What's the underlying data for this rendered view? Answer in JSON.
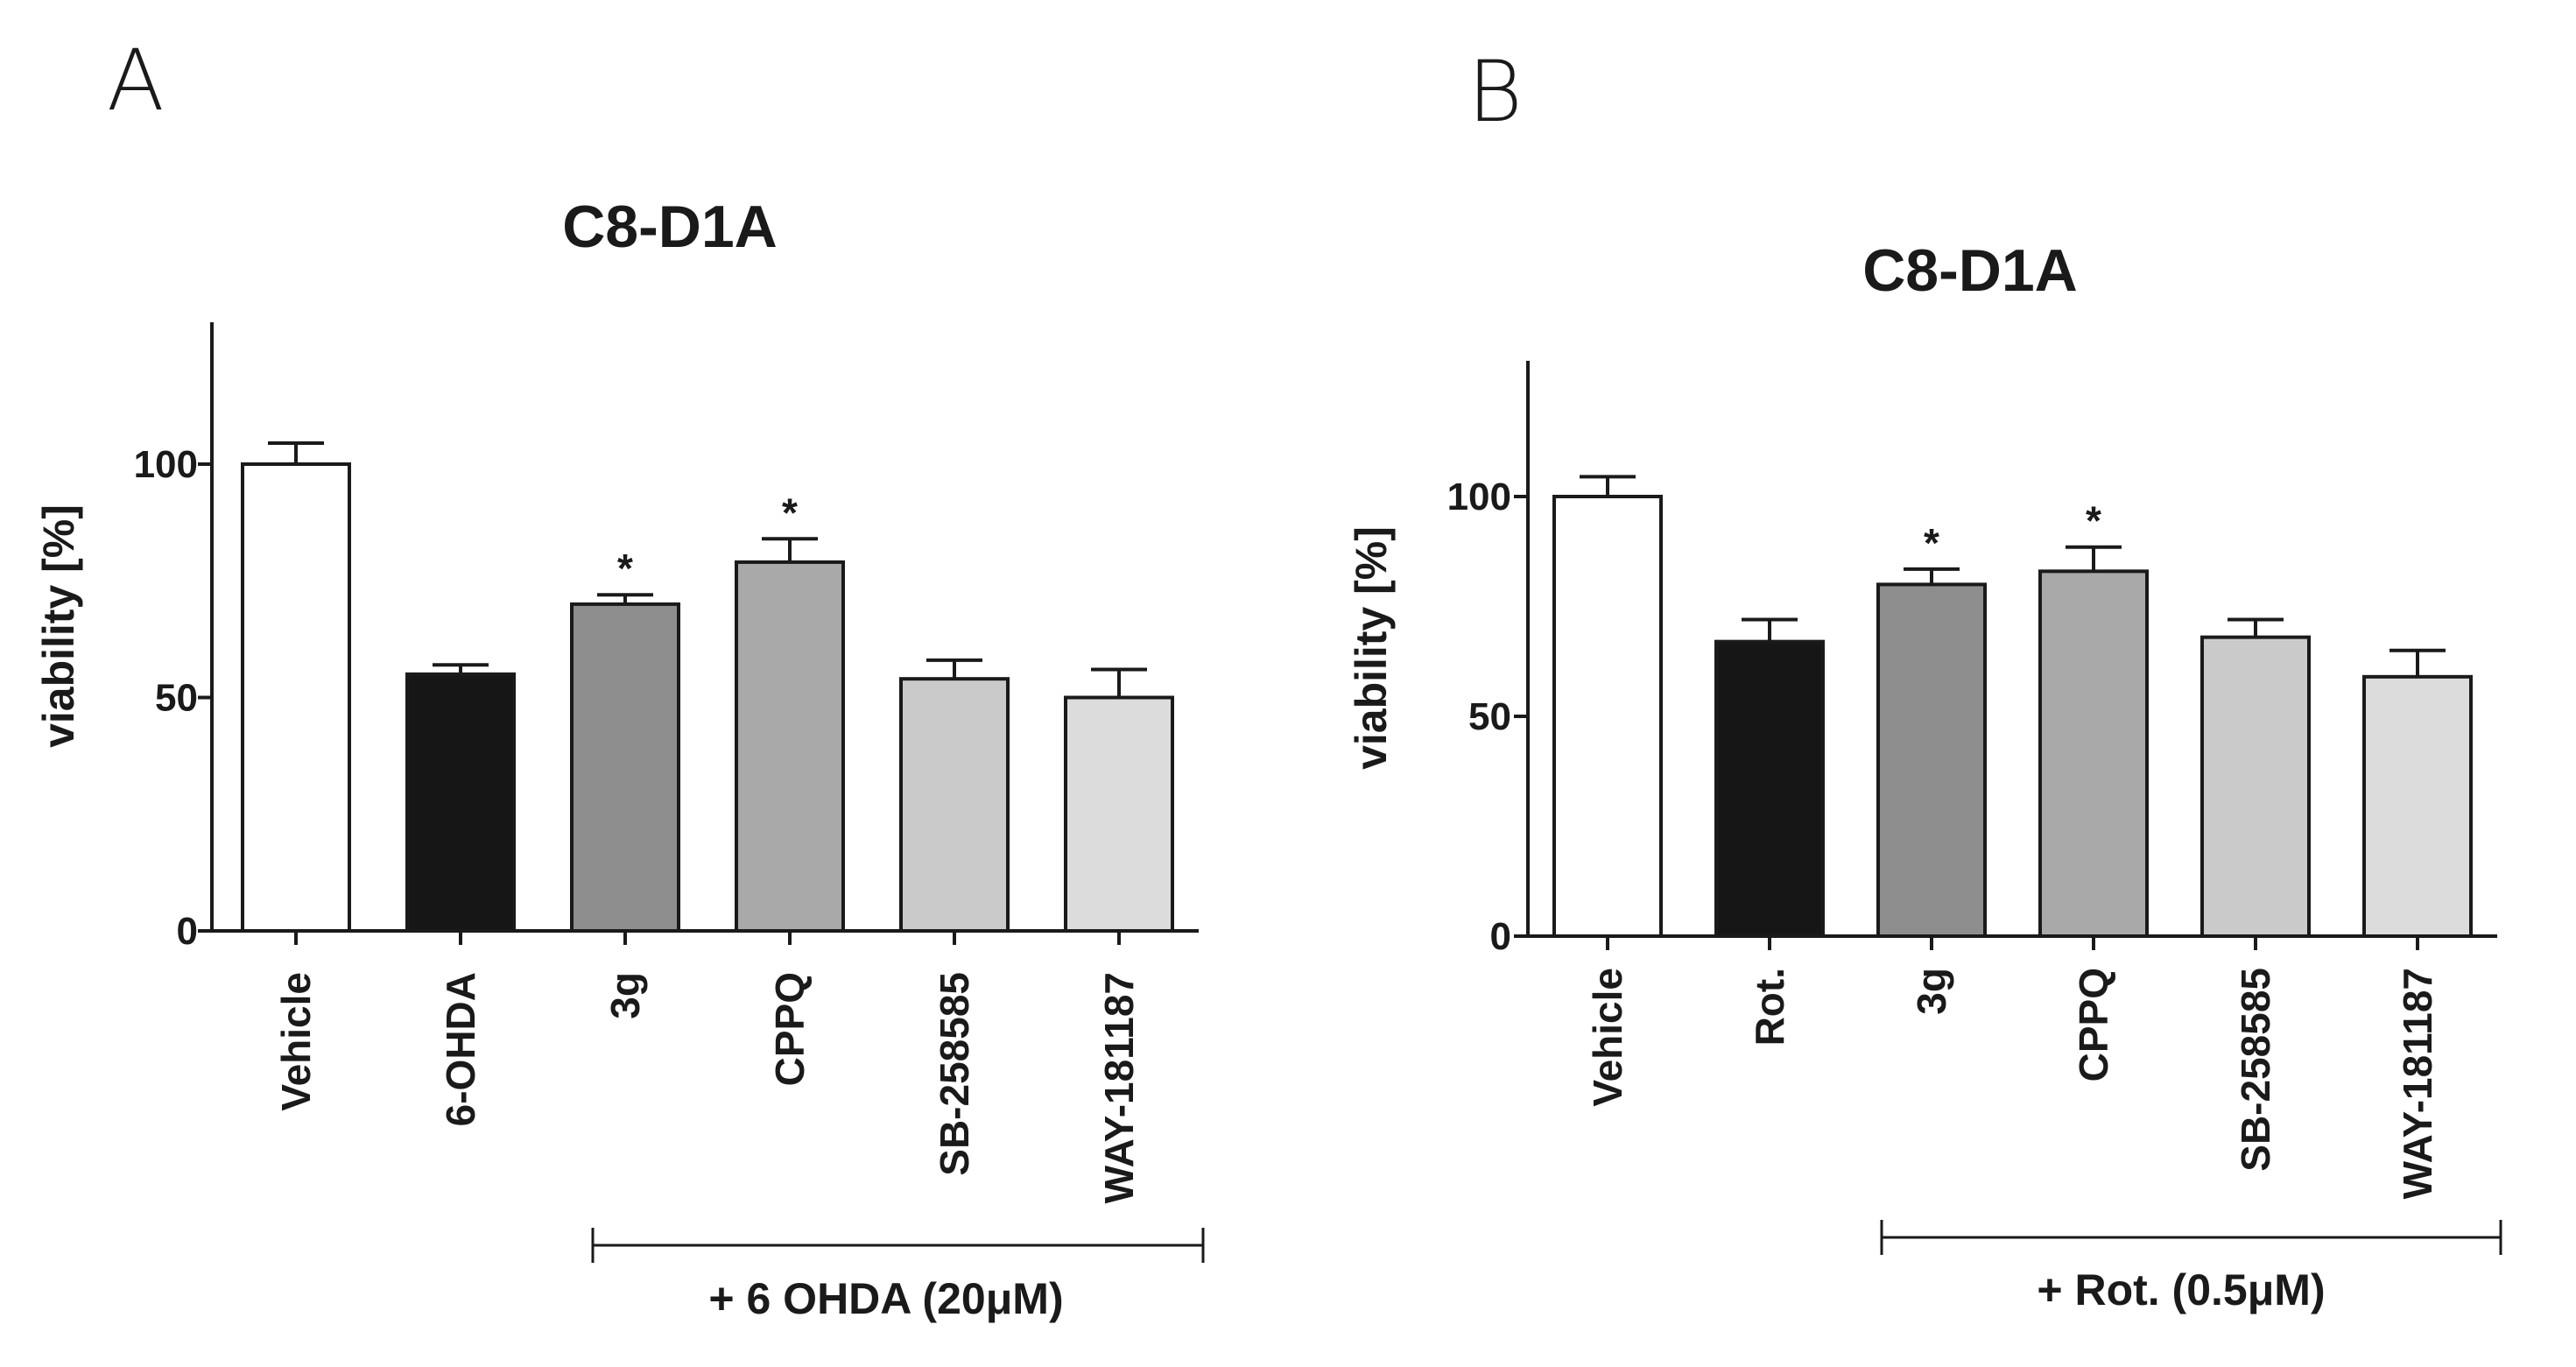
{
  "chart_data": [
    {
      "panel": "A",
      "type": "bar",
      "title": "C8-D1A",
      "xlabel": "",
      "ylabel": "viability [%]",
      "ylim": [
        0,
        130
      ],
      "yticks": [
        0,
        50,
        100
      ],
      "categories": [
        "Vehicle",
        "6-OHDA",
        "3g",
        "CPPQ",
        "SB-258585",
        "WAY-181187"
      ],
      "values": [
        100,
        55,
        70,
        79,
        54,
        50
      ],
      "errors": [
        4.5,
        2,
        2,
        5,
        4,
        6
      ],
      "colors": [
        "#ffffff",
        "#161616",
        "#8e8e8e",
        "#a9a9a9",
        "#cacaca",
        "#dcdcdc"
      ],
      "significance": [
        "",
        "",
        "*",
        "*",
        "",
        ""
      ],
      "group_bracket": {
        "label": "+ 6 OHDA (20μM)",
        "from_category": "3g",
        "to_category": "WAY-181187"
      }
    },
    {
      "panel": "B",
      "type": "bar",
      "title": "C8-D1A",
      "xlabel": "",
      "ylabel": "viability [%]",
      "ylim": [
        0,
        130
      ],
      "yticks": [
        0,
        50,
        100
      ],
      "categories": [
        "Vehicle",
        "Rot.",
        "3g",
        "CPPQ",
        "SB-258585",
        "WAY-181187"
      ],
      "values": [
        100,
        67,
        80,
        83,
        68,
        59
      ],
      "errors": [
        4.5,
        5,
        3.5,
        5.5,
        4,
        6
      ],
      "colors": [
        "#ffffff",
        "#161616",
        "#8e8e8e",
        "#a9a9a9",
        "#cacaca",
        "#dcdcdc"
      ],
      "significance": [
        "",
        "",
        "*",
        "*",
        "",
        ""
      ],
      "group_bracket": {
        "label": "+ Rot. (0.5μM)",
        "from_category": "3g",
        "to_category": "WAY-181187"
      }
    }
  ]
}
